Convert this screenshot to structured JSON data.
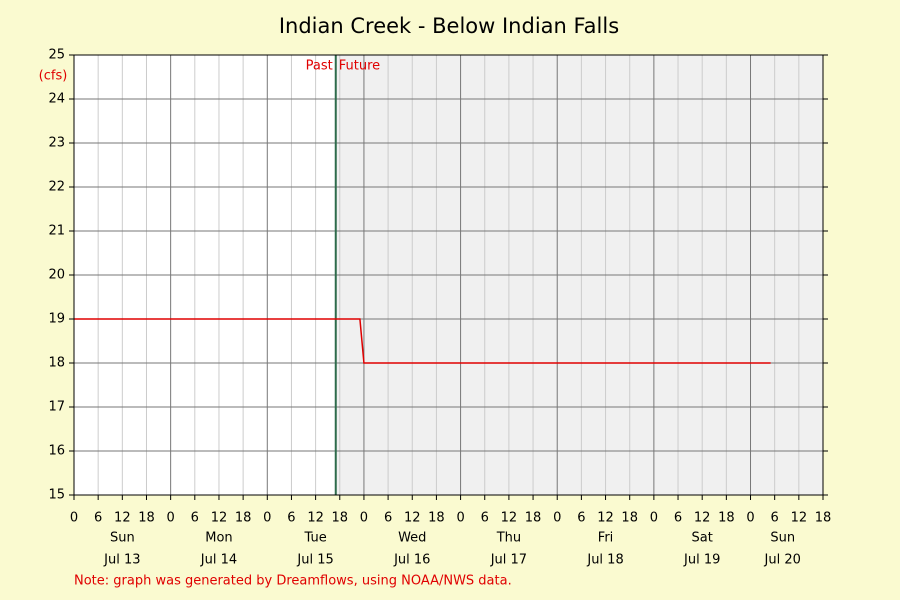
{
  "chart_data": {
    "type": "line",
    "title": "Indian Creek - Below Indian Falls",
    "y_label": "(cfs)",
    "note": "Note: graph was generated by Dreamflows, using NOAA/NWS data.",
    "now": {
      "x": 65,
      "past_label": "Past",
      "future_label": "Future",
      "color": "#2e6b4b",
      "future_fill": "#f0f0f0"
    },
    "series": [
      {
        "color": "#e00000",
        "x": [
          0,
          71,
          72,
          173
        ],
        "values": [
          19,
          19,
          18,
          18
        ]
      }
    ],
    "xlim": [
      0,
      186
    ],
    "xticks": [
      0,
      6,
      12,
      18,
      {
        "value": 24,
        "label": "0"
      },
      {
        "value": 30,
        "label": "6"
      },
      {
        "value": 36,
        "label": "12"
      },
      {
        "value": 42,
        "label": "18"
      },
      {
        "value": 48,
        "label": "0"
      },
      {
        "value": 54,
        "label": "6"
      },
      {
        "value": 60,
        "label": "12"
      },
      {
        "value": 66,
        "label": "18"
      },
      {
        "value": 72,
        "label": "0"
      },
      {
        "value": 78,
        "label": "6"
      },
      {
        "value": 84,
        "label": "12"
      },
      {
        "value": 90,
        "label": "18"
      },
      {
        "value": 96,
        "label": "0"
      },
      {
        "value": 102,
        "label": "6"
      },
      {
        "value": 108,
        "label": "12"
      },
      {
        "value": 114,
        "label": "18"
      },
      {
        "value": 120,
        "label": "0"
      },
      {
        "value": 126,
        "label": "6"
      },
      {
        "value": 132,
        "label": "12"
      },
      {
        "value": 138,
        "label": "18"
      },
      {
        "value": 144,
        "label": "0"
      },
      {
        "value": 150,
        "label": "6"
      },
      {
        "value": 156,
        "label": "12"
      },
      {
        "value": 162,
        "label": "18"
      },
      {
        "value": 168,
        "label": "0"
      },
      {
        "value": 174,
        "label": "6"
      },
      {
        "value": 180,
        "label": "12"
      },
      {
        "value": 186,
        "label": "18"
      }
    ],
    "days": [
      {
        "value": 12,
        "day": "Sun",
        "date": "Jul 13"
      },
      {
        "value": 36,
        "day": "Mon",
        "date": "Jul 14"
      },
      {
        "value": 60,
        "day": "Tue",
        "date": "Jul 15"
      },
      {
        "value": 84,
        "day": "Wed",
        "date": "Jul 16"
      },
      {
        "value": 108,
        "day": "Thu",
        "date": "Jul 17"
      },
      {
        "value": 132,
        "day": "Fri",
        "date": "Jul 18"
      },
      {
        "value": 156,
        "day": "Sat",
        "date": "Jul 19"
      },
      {
        "value": 176,
        "day": "Sun",
        "date": "Jul 20"
      }
    ],
    "ylim": [
      15,
      25
    ],
    "yticks": [
      15,
      16,
      17,
      18,
      19,
      20,
      21,
      22,
      23,
      24,
      25
    ],
    "grid": true
  }
}
